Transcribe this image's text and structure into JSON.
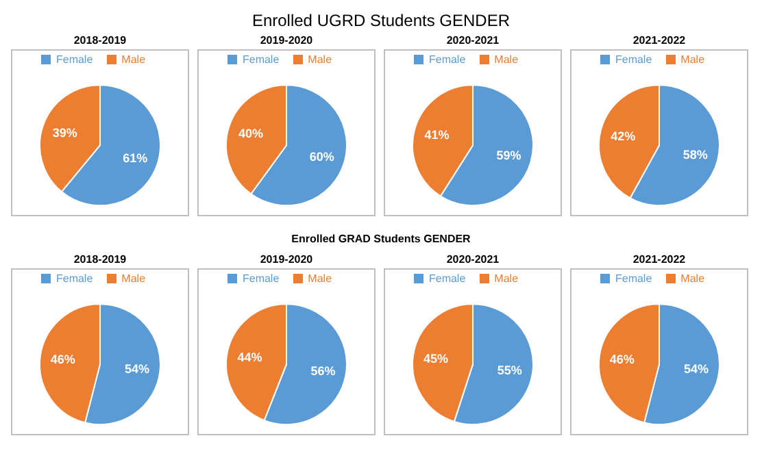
{
  "chart_data": [
    {
      "type": "other",
      "title": "Enrolled UGRD Students GENDER"
    },
    {
      "type": "pie",
      "title": "2018-2019",
      "categories": [
        "Female",
        "Male"
      ],
      "values": [
        61,
        39
      ],
      "colors": [
        "#5b9bd5",
        "#ed7d31"
      ],
      "value_labels": [
        "61%",
        "39%"
      ],
      "legend": "top"
    },
    {
      "type": "pie",
      "title": "2019-2020",
      "categories": [
        "Female",
        "Male"
      ],
      "values": [
        60,
        40
      ],
      "colors": [
        "#5b9bd5",
        "#ed7d31"
      ],
      "value_labels": [
        "60%",
        "40%"
      ],
      "legend": "top"
    },
    {
      "type": "pie",
      "title": "2020-2021",
      "categories": [
        "Female",
        "Male"
      ],
      "values": [
        59,
        41
      ],
      "colors": [
        "#5b9bd5",
        "#ed7d31"
      ],
      "value_labels": [
        "59%",
        "41%"
      ],
      "legend": "top"
    },
    {
      "type": "pie",
      "title": "2021-2022",
      "categories": [
        "Female",
        "Male"
      ],
      "values": [
        58,
        42
      ],
      "colors": [
        "#5b9bd5",
        "#ed7d31"
      ],
      "value_labels": [
        "58%",
        "42%"
      ],
      "legend": "top"
    },
    {
      "type": "other",
      "title": "Enrolled GRAD Students GENDER"
    },
    {
      "type": "pie",
      "title": "2018-2019",
      "categories": [
        "Female",
        "Male"
      ],
      "values": [
        54,
        46
      ],
      "colors": [
        "#5b9bd5",
        "#ed7d31"
      ],
      "value_labels": [
        "54%",
        "46%"
      ],
      "legend": "top"
    },
    {
      "type": "pie",
      "title": "2019-2020",
      "categories": [
        "Female",
        "Male"
      ],
      "values": [
        56,
        44
      ],
      "colors": [
        "#5b9bd5",
        "#ed7d31"
      ],
      "value_labels": [
        "56%",
        "44%"
      ],
      "legend": "top"
    },
    {
      "type": "pie",
      "title": "2020-2021",
      "categories": [
        "Female",
        "Male"
      ],
      "values": [
        55,
        45
      ],
      "colors": [
        "#5b9bd5",
        "#ed7d31"
      ],
      "value_labels": [
        "55%",
        "45%"
      ],
      "legend": "top"
    },
    {
      "type": "pie",
      "title": "2021-2022",
      "categories": [
        "Female",
        "Male"
      ],
      "values": [
        54,
        46
      ],
      "colors": [
        "#5b9bd5",
        "#ed7d31"
      ],
      "value_labels": [
        "54%",
        "46%"
      ],
      "legend": "top"
    }
  ]
}
